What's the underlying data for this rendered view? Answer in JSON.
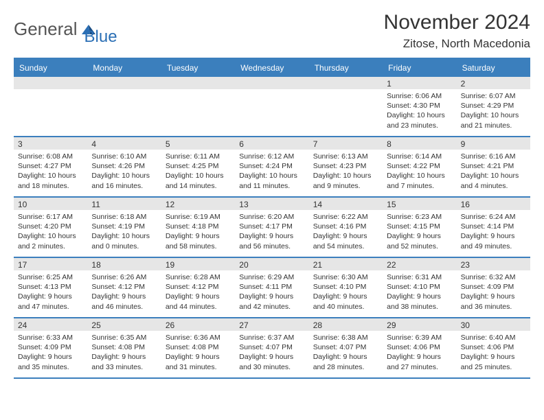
{
  "logo": {
    "text1": "General",
    "text2": "Blue",
    "accent": "#2b6fb5"
  },
  "title": {
    "month": "November 2024",
    "location": "Zitose, North Macedonia"
  },
  "colors": {
    "header_bg": "#3b7fbd",
    "header_text": "#ffffff",
    "datebar_bg": "#e6e6e6",
    "border": "#3b7fbd",
    "text": "#333333",
    "background": "#ffffff"
  },
  "typography": {
    "month_fontsize": 30,
    "location_fontsize": 17,
    "dayhead_fontsize": 12,
    "daynum_fontsize": 12,
    "body_fontsize": 10.5
  },
  "dayheads": [
    "Sunday",
    "Monday",
    "Tuesday",
    "Wednesday",
    "Thursday",
    "Friday",
    "Saturday"
  ],
  "weeks": [
    [
      {
        "date": "",
        "sunrise": "",
        "sunset": "",
        "daylight": ""
      },
      {
        "date": "",
        "sunrise": "",
        "sunset": "",
        "daylight": ""
      },
      {
        "date": "",
        "sunrise": "",
        "sunset": "",
        "daylight": ""
      },
      {
        "date": "",
        "sunrise": "",
        "sunset": "",
        "daylight": ""
      },
      {
        "date": "",
        "sunrise": "",
        "sunset": "",
        "daylight": ""
      },
      {
        "date": "1",
        "sunrise": "Sunrise: 6:06 AM",
        "sunset": "Sunset: 4:30 PM",
        "daylight": "Daylight: 10 hours and 23 minutes."
      },
      {
        "date": "2",
        "sunrise": "Sunrise: 6:07 AM",
        "sunset": "Sunset: 4:29 PM",
        "daylight": "Daylight: 10 hours and 21 minutes."
      }
    ],
    [
      {
        "date": "3",
        "sunrise": "Sunrise: 6:08 AM",
        "sunset": "Sunset: 4:27 PM",
        "daylight": "Daylight: 10 hours and 18 minutes."
      },
      {
        "date": "4",
        "sunrise": "Sunrise: 6:10 AM",
        "sunset": "Sunset: 4:26 PM",
        "daylight": "Daylight: 10 hours and 16 minutes."
      },
      {
        "date": "5",
        "sunrise": "Sunrise: 6:11 AM",
        "sunset": "Sunset: 4:25 PM",
        "daylight": "Daylight: 10 hours and 14 minutes."
      },
      {
        "date": "6",
        "sunrise": "Sunrise: 6:12 AM",
        "sunset": "Sunset: 4:24 PM",
        "daylight": "Daylight: 10 hours and 11 minutes."
      },
      {
        "date": "7",
        "sunrise": "Sunrise: 6:13 AM",
        "sunset": "Sunset: 4:23 PM",
        "daylight": "Daylight: 10 hours and 9 minutes."
      },
      {
        "date": "8",
        "sunrise": "Sunrise: 6:14 AM",
        "sunset": "Sunset: 4:22 PM",
        "daylight": "Daylight: 10 hours and 7 minutes."
      },
      {
        "date": "9",
        "sunrise": "Sunrise: 6:16 AM",
        "sunset": "Sunset: 4:21 PM",
        "daylight": "Daylight: 10 hours and 4 minutes."
      }
    ],
    [
      {
        "date": "10",
        "sunrise": "Sunrise: 6:17 AM",
        "sunset": "Sunset: 4:20 PM",
        "daylight": "Daylight: 10 hours and 2 minutes."
      },
      {
        "date": "11",
        "sunrise": "Sunrise: 6:18 AM",
        "sunset": "Sunset: 4:19 PM",
        "daylight": "Daylight: 10 hours and 0 minutes."
      },
      {
        "date": "12",
        "sunrise": "Sunrise: 6:19 AM",
        "sunset": "Sunset: 4:18 PM",
        "daylight": "Daylight: 9 hours and 58 minutes."
      },
      {
        "date": "13",
        "sunrise": "Sunrise: 6:20 AM",
        "sunset": "Sunset: 4:17 PM",
        "daylight": "Daylight: 9 hours and 56 minutes."
      },
      {
        "date": "14",
        "sunrise": "Sunrise: 6:22 AM",
        "sunset": "Sunset: 4:16 PM",
        "daylight": "Daylight: 9 hours and 54 minutes."
      },
      {
        "date": "15",
        "sunrise": "Sunrise: 6:23 AM",
        "sunset": "Sunset: 4:15 PM",
        "daylight": "Daylight: 9 hours and 52 minutes."
      },
      {
        "date": "16",
        "sunrise": "Sunrise: 6:24 AM",
        "sunset": "Sunset: 4:14 PM",
        "daylight": "Daylight: 9 hours and 49 minutes."
      }
    ],
    [
      {
        "date": "17",
        "sunrise": "Sunrise: 6:25 AM",
        "sunset": "Sunset: 4:13 PM",
        "daylight": "Daylight: 9 hours and 47 minutes."
      },
      {
        "date": "18",
        "sunrise": "Sunrise: 6:26 AM",
        "sunset": "Sunset: 4:12 PM",
        "daylight": "Daylight: 9 hours and 46 minutes."
      },
      {
        "date": "19",
        "sunrise": "Sunrise: 6:28 AM",
        "sunset": "Sunset: 4:12 PM",
        "daylight": "Daylight: 9 hours and 44 minutes."
      },
      {
        "date": "20",
        "sunrise": "Sunrise: 6:29 AM",
        "sunset": "Sunset: 4:11 PM",
        "daylight": "Daylight: 9 hours and 42 minutes."
      },
      {
        "date": "21",
        "sunrise": "Sunrise: 6:30 AM",
        "sunset": "Sunset: 4:10 PM",
        "daylight": "Daylight: 9 hours and 40 minutes."
      },
      {
        "date": "22",
        "sunrise": "Sunrise: 6:31 AM",
        "sunset": "Sunset: 4:10 PM",
        "daylight": "Daylight: 9 hours and 38 minutes."
      },
      {
        "date": "23",
        "sunrise": "Sunrise: 6:32 AM",
        "sunset": "Sunset: 4:09 PM",
        "daylight": "Daylight: 9 hours and 36 minutes."
      }
    ],
    [
      {
        "date": "24",
        "sunrise": "Sunrise: 6:33 AM",
        "sunset": "Sunset: 4:09 PM",
        "daylight": "Daylight: 9 hours and 35 minutes."
      },
      {
        "date": "25",
        "sunrise": "Sunrise: 6:35 AM",
        "sunset": "Sunset: 4:08 PM",
        "daylight": "Daylight: 9 hours and 33 minutes."
      },
      {
        "date": "26",
        "sunrise": "Sunrise: 6:36 AM",
        "sunset": "Sunset: 4:08 PM",
        "daylight": "Daylight: 9 hours and 31 minutes."
      },
      {
        "date": "27",
        "sunrise": "Sunrise: 6:37 AM",
        "sunset": "Sunset: 4:07 PM",
        "daylight": "Daylight: 9 hours and 30 minutes."
      },
      {
        "date": "28",
        "sunrise": "Sunrise: 6:38 AM",
        "sunset": "Sunset: 4:07 PM",
        "daylight": "Daylight: 9 hours and 28 minutes."
      },
      {
        "date": "29",
        "sunrise": "Sunrise: 6:39 AM",
        "sunset": "Sunset: 4:06 PM",
        "daylight": "Daylight: 9 hours and 27 minutes."
      },
      {
        "date": "30",
        "sunrise": "Sunrise: 6:40 AM",
        "sunset": "Sunset: 4:06 PM",
        "daylight": "Daylight: 9 hours and 25 minutes."
      }
    ]
  ]
}
